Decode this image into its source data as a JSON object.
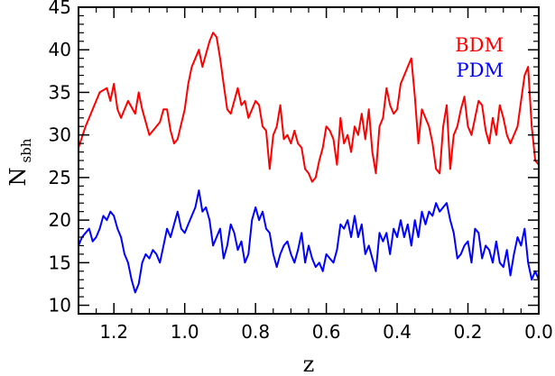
{
  "chart_data": {
    "type": "line",
    "title": "",
    "xlabel": "z",
    "ylabel": "N",
    "ylabel_sub": "sbh",
    "xlim": [
      1.3,
      0.0
    ],
    "ylim": [
      9,
      45
    ],
    "xticks": [
      1.2,
      1.0,
      0.8,
      0.6,
      0.4,
      0.2,
      0.0
    ],
    "xtick_labels": [
      "1.2",
      "1.0",
      "0.8",
      "0.6",
      "0.4",
      "0.2",
      "0.0"
    ],
    "yticks": [
      10,
      15,
      20,
      25,
      30,
      35,
      40,
      45
    ],
    "ytick_labels": [
      "10",
      "15",
      "20",
      "25",
      "30",
      "35",
      "40",
      "45"
    ],
    "grid": false,
    "legend_position": "top-right",
    "series": [
      {
        "name": "BDM",
        "color": "#ff0000",
        "x": [
          1.3,
          1.28,
          1.26,
          1.24,
          1.22,
          1.21,
          1.2,
          1.19,
          1.18,
          1.16,
          1.14,
          1.13,
          1.12,
          1.1,
          1.08,
          1.07,
          1.06,
          1.05,
          1.04,
          1.03,
          1.02,
          1.0,
          0.99,
          0.98,
          0.97,
          0.96,
          0.95,
          0.93,
          0.92,
          0.91,
          0.9,
          0.89,
          0.88,
          0.87,
          0.86,
          0.85,
          0.84,
          0.83,
          0.82,
          0.8,
          0.79,
          0.78,
          0.77,
          0.76,
          0.75,
          0.74,
          0.73,
          0.72,
          0.71,
          0.7,
          0.69,
          0.68,
          0.67,
          0.66,
          0.65,
          0.64,
          0.63,
          0.62,
          0.61,
          0.6,
          0.59,
          0.58,
          0.57,
          0.56,
          0.55,
          0.54,
          0.53,
          0.52,
          0.51,
          0.5,
          0.49,
          0.48,
          0.47,
          0.46,
          0.45,
          0.44,
          0.43,
          0.42,
          0.41,
          0.4,
          0.39,
          0.38,
          0.37,
          0.36,
          0.35,
          0.34,
          0.33,
          0.32,
          0.31,
          0.3,
          0.29,
          0.28,
          0.27,
          0.26,
          0.25,
          0.24,
          0.23,
          0.22,
          0.21,
          0.2,
          0.19,
          0.18,
          0.17,
          0.16,
          0.15,
          0.14,
          0.13,
          0.12,
          0.11,
          0.1,
          0.09,
          0.08,
          0.07,
          0.06,
          0.05,
          0.04,
          0.03,
          0.02,
          0.01,
          0.0
        ],
        "values": [
          28.5,
          31,
          33,
          35,
          35.5,
          34,
          36,
          33,
          32,
          34,
          32.5,
          35,
          33,
          30,
          31,
          31.5,
          33,
          33,
          30.5,
          29,
          29.5,
          33,
          36,
          38,
          39,
          40,
          38,
          41,
          42,
          41.5,
          39,
          36,
          33,
          32.5,
          34,
          35.5,
          33.5,
          34,
          32,
          34,
          33.5,
          31,
          30.5,
          26,
          30,
          31,
          33.5,
          29.5,
          30,
          29,
          30.5,
          29,
          28.5,
          26,
          25.5,
          24.5,
          25,
          27,
          28.5,
          31,
          30.5,
          29.5,
          26.5,
          32,
          29,
          30,
          28,
          31,
          30,
          32.5,
          29.5,
          33,
          28,
          25.5,
          31,
          32,
          35.5,
          33.5,
          32.5,
          33,
          36,
          37,
          38,
          39,
          34.5,
          29,
          33,
          32,
          31,
          29,
          26,
          25.5,
          31,
          33.5,
          26,
          30,
          31,
          33,
          34.5,
          31,
          30,
          32,
          34,
          33.5,
          30.5,
          29,
          32,
          30,
          33.5,
          32,
          30,
          29,
          30,
          31,
          34,
          37,
          38,
          31,
          27,
          26.5
        ]
      },
      {
        "name": "PDM",
        "color": "#0000ff",
        "x": [
          1.3,
          1.29,
          1.28,
          1.27,
          1.26,
          1.25,
          1.24,
          1.23,
          1.22,
          1.21,
          1.2,
          1.19,
          1.18,
          1.17,
          1.16,
          1.15,
          1.14,
          1.13,
          1.12,
          1.11,
          1.1,
          1.09,
          1.08,
          1.07,
          1.06,
          1.05,
          1.04,
          1.03,
          1.02,
          1.01,
          1.0,
          0.99,
          0.98,
          0.97,
          0.96,
          0.95,
          0.94,
          0.93,
          0.92,
          0.91,
          0.9,
          0.89,
          0.88,
          0.87,
          0.86,
          0.85,
          0.84,
          0.83,
          0.82,
          0.81,
          0.8,
          0.79,
          0.78,
          0.77,
          0.76,
          0.75,
          0.74,
          0.73,
          0.72,
          0.71,
          0.7,
          0.69,
          0.68,
          0.67,
          0.66,
          0.65,
          0.64,
          0.63,
          0.62,
          0.61,
          0.6,
          0.59,
          0.58,
          0.57,
          0.56,
          0.55,
          0.54,
          0.53,
          0.52,
          0.51,
          0.5,
          0.49,
          0.48,
          0.47,
          0.46,
          0.45,
          0.44,
          0.43,
          0.42,
          0.41,
          0.4,
          0.39,
          0.38,
          0.37,
          0.36,
          0.35,
          0.34,
          0.33,
          0.32,
          0.31,
          0.3,
          0.29,
          0.28,
          0.27,
          0.26,
          0.25,
          0.24,
          0.23,
          0.22,
          0.21,
          0.2,
          0.19,
          0.18,
          0.17,
          0.16,
          0.15,
          0.14,
          0.13,
          0.12,
          0.11,
          0.1,
          0.09,
          0.08,
          0.07,
          0.06,
          0.05,
          0.04,
          0.03,
          0.02,
          0.01,
          0.0
        ],
        "values": [
          17,
          18,
          18.5,
          19,
          17.5,
          18,
          19,
          20.5,
          20,
          21,
          20.5,
          19,
          18,
          16,
          15,
          13,
          11.5,
          12.5,
          15,
          16,
          15.5,
          16.5,
          16,
          15,
          17,
          19,
          18,
          19.5,
          21,
          19,
          18.5,
          19.5,
          20.5,
          21.5,
          23.5,
          21,
          21.5,
          20,
          17,
          18,
          19,
          15.5,
          17,
          19.5,
          18.5,
          16.5,
          17.5,
          15,
          16,
          20,
          21.5,
          20,
          21,
          19,
          18.5,
          16,
          14.5,
          16,
          17,
          17.5,
          16,
          15,
          16.5,
          18.5,
          15,
          17,
          15.5,
          14.5,
          15,
          14,
          16,
          15.5,
          15,
          16.5,
          19.5,
          19,
          20,
          18,
          20.5,
          18,
          19.5,
          16,
          17,
          15.5,
          14,
          18.5,
          17.5,
          18.5,
          16,
          19,
          18,
          20,
          18,
          19.5,
          17,
          20,
          18,
          21,
          19.5,
          21,
          20.5,
          22,
          21,
          21.5,
          22,
          20,
          18.5,
          15.5,
          16,
          17,
          17.5,
          15,
          19,
          18.5,
          15.5,
          17,
          16.5,
          15,
          17.5,
          15,
          14.5,
          16.5,
          13.5,
          16,
          18,
          17,
          19,
          15,
          13,
          14,
          13
        ]
      }
    ]
  }
}
